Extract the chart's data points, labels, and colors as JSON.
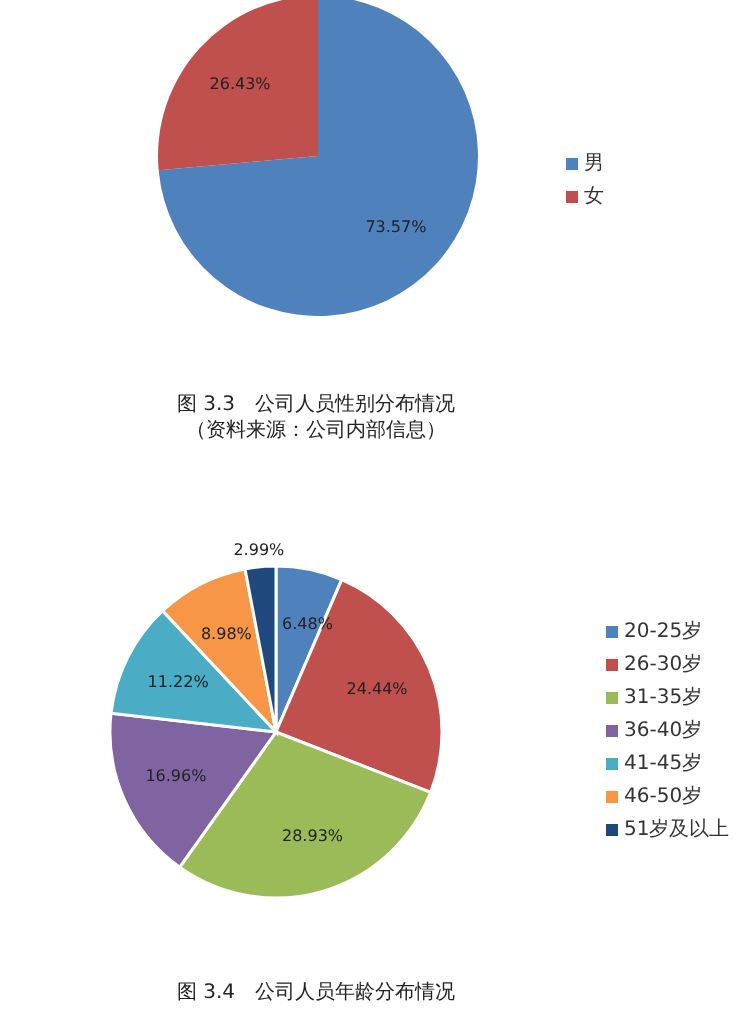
{
  "chart_data": [
    {
      "type": "pie",
      "title": "图 3.3　公司人员性别分布情况",
      "annotations": [
        "（资料来源：公司内部信息）"
      ],
      "categories": [
        "男",
        "女"
      ],
      "values": [
        73.57,
        26.43
      ],
      "value_labels": [
        "73.57%",
        "26.43%"
      ],
      "colors": [
        "#4f81bd",
        "#c0504d"
      ],
      "legend": "right"
    },
    {
      "type": "pie",
      "title": "图 3.4　公司人员年龄分布情况",
      "categories": [
        "20-25岁",
        "26-30岁",
        "31-35岁",
        "36-40岁",
        "41-45岁",
        "46-50岁",
        "51岁及以上"
      ],
      "values": [
        6.48,
        24.44,
        28.93,
        16.96,
        11.22,
        8.98,
        2.99
      ],
      "value_labels": [
        "6.48%",
        "24.44%",
        "28.93%",
        "16.96%",
        "11.22%",
        "8.98%",
        "2.99%"
      ],
      "colors": [
        "#4f81bd",
        "#c0504d",
        "#9bbb59",
        "#8064a2",
        "#4bacc6",
        "#f79646",
        "#1f497d"
      ],
      "legend": "right"
    }
  ]
}
